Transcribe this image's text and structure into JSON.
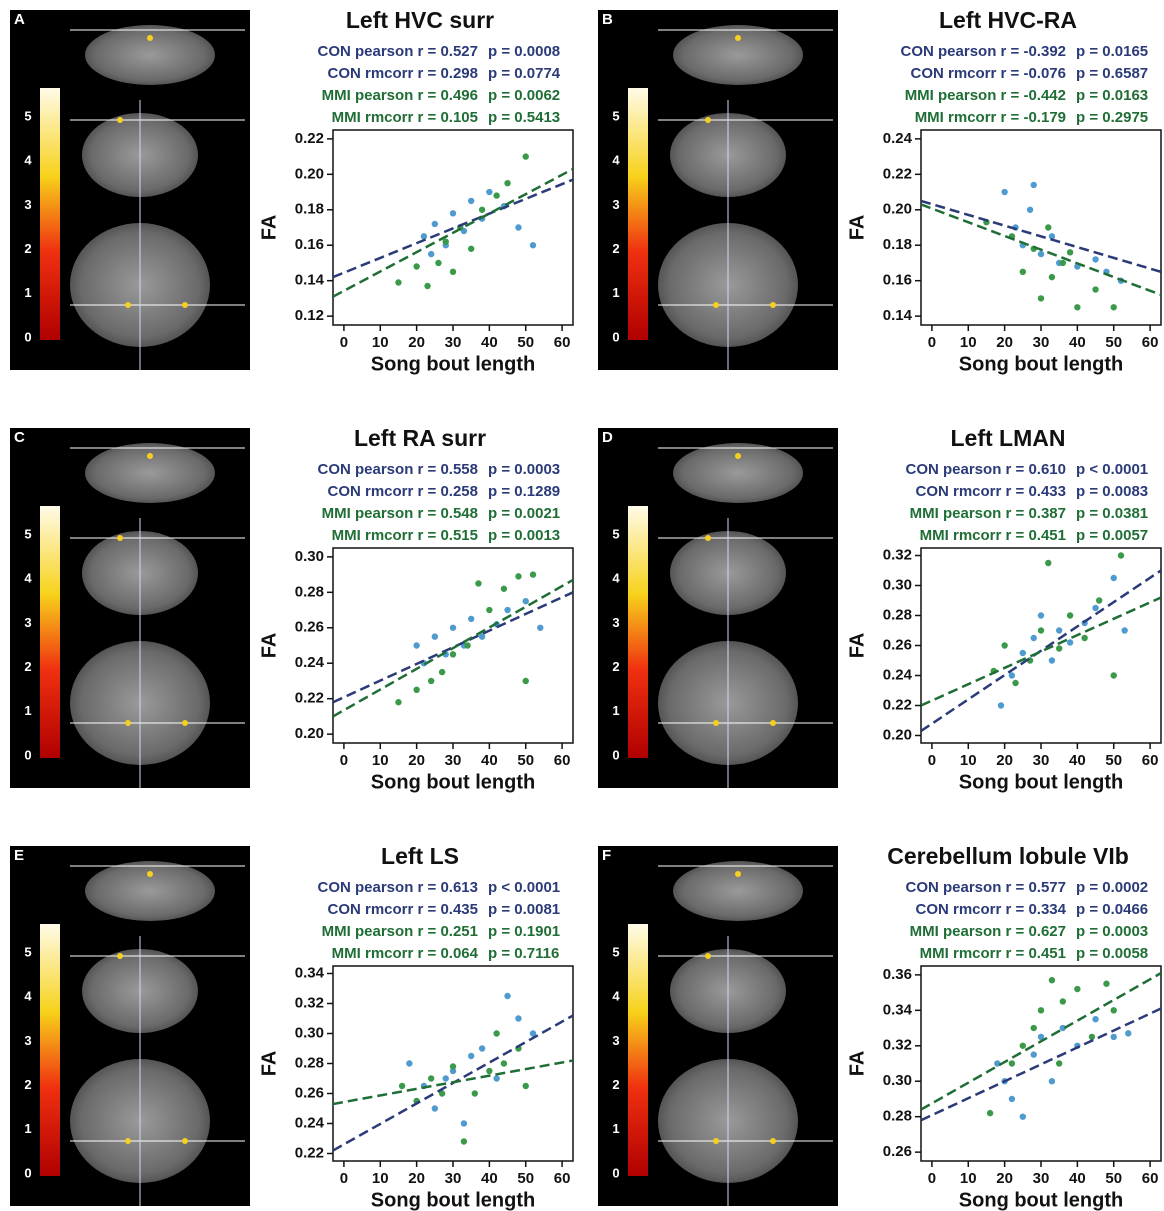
{
  "chart_data": [
    {
      "type": "scatter",
      "panel": "A",
      "title": "Left HVC surr",
      "stats": [
        {
          "label": "CON pearson r = 0.527",
          "p": "p = 0.0008",
          "color": "#2b3a78"
        },
        {
          "label": "CON rmcorr r = 0.298",
          "p": "p = 0.0774",
          "color": "#2b3a78"
        },
        {
          "label": "MMI pearson r = 0.496",
          "p": "p = 0.0062",
          "color": "#1f6e35"
        },
        {
          "label": "MMI rmcorr r = 0.105",
          "p": "p = 0.5413",
          "color": "#1f6e35"
        }
      ],
      "xlabel": "Song bout length",
      "ylabel": "FA",
      "xlim": [
        -3,
        63
      ],
      "xticks": [
        0,
        10,
        20,
        30,
        40,
        50,
        60
      ],
      "ylim": [
        0.115,
        0.225
      ],
      "yticks": [
        0.12,
        0.14,
        0.16,
        0.18,
        {
          "value": 0.2,
          "label": "0.20"
        },
        0.22
      ],
      "colorbar_ticks": [
        0,
        1,
        2,
        3,
        4,
        5
      ],
      "series": [
        {
          "color": "#4f9bd0",
          "x": [
            22,
            25,
            28,
            30,
            33,
            35,
            38,
            40,
            44,
            48,
            52,
            24
          ],
          "values": [
            0.165,
            0.172,
            0.16,
            0.178,
            0.168,
            0.185,
            0.175,
            0.19,
            0.182,
            0.17,
            0.16,
            0.155
          ]
        },
        {
          "color": "#3a9a4a",
          "x": [
            15,
            20,
            23,
            26,
            28,
            32,
            35,
            38,
            42,
            45,
            50,
            30
          ],
          "values": [
            0.139,
            0.148,
            0.137,
            0.15,
            0.162,
            0.17,
            0.158,
            0.18,
            0.188,
            0.195,
            0.21,
            0.145
          ]
        }
      ],
      "fits": [
        {
          "color": "#2b3a78",
          "x": [
            -3,
            63
          ],
          "values": [
            0.142,
            0.197
          ]
        },
        {
          "color": "#1f6e35",
          "x": [
            -3,
            63
          ],
          "values": [
            0.131,
            0.203
          ]
        }
      ]
    },
    {
      "type": "scatter",
      "panel": "B",
      "title": "Left HVC-RA",
      "stats": [
        {
          "label": "CON pearson r = -0.392",
          "p": "p = 0.0165",
          "color": "#2b3a78"
        },
        {
          "label": "CON rmcorr r = -0.076",
          "p": "p = 0.6587",
          "color": "#2b3a78"
        },
        {
          "label": "MMI pearson r = -0.442",
          "p": "p = 0.0163",
          "color": "#1f6e35"
        },
        {
          "label": "MMI rmcorr r = -0.179",
          "p": "p = 0.2975",
          "color": "#1f6e35"
        }
      ],
      "xlabel": "Song bout length",
      "ylabel": "FA",
      "xlim": [
        -3,
        63
      ],
      "xticks": [
        0,
        10,
        20,
        30,
        40,
        50,
        60
      ],
      "ylim": [
        0.135,
        0.245
      ],
      "yticks": [
        0.14,
        0.16,
        0.18,
        {
          "value": 0.2,
          "label": "0.20"
        },
        0.22,
        0.24
      ],
      "colorbar_ticks": [
        0,
        1,
        2,
        3,
        4,
        5
      ],
      "series": [
        {
          "color": "#4f9bd0",
          "x": [
            20,
            23,
            25,
            27,
            30,
            33,
            35,
            40,
            45,
            48,
            52,
            28
          ],
          "values": [
            0.21,
            0.19,
            0.18,
            0.2,
            0.175,
            0.185,
            0.17,
            0.168,
            0.172,
            0.165,
            0.16,
            0.214
          ]
        },
        {
          "color": "#3a9a4a",
          "x": [
            15,
            22,
            25,
            28,
            30,
            33,
            36,
            40,
            45,
            50,
            32,
            38
          ],
          "values": [
            0.193,
            0.185,
            0.165,
            0.178,
            0.15,
            0.162,
            0.17,
            0.145,
            0.155,
            0.145,
            0.19,
            0.176
          ]
        }
      ],
      "fits": [
        {
          "color": "#2b3a78",
          "x": [
            -3,
            63
          ],
          "values": [
            0.205,
            0.165
          ]
        },
        {
          "color": "#1f6e35",
          "x": [
            -3,
            63
          ],
          "values": [
            0.203,
            0.152
          ]
        }
      ]
    },
    {
      "type": "scatter",
      "panel": "C",
      "title": "Left RA surr",
      "stats": [
        {
          "label": "CON pearson r = 0.558",
          "p": "p = 0.0003",
          "color": "#2b3a78"
        },
        {
          "label": "CON rmcorr r = 0.258",
          "p": "p = 0.1289",
          "color": "#2b3a78"
        },
        {
          "label": "MMI pearson r = 0.548",
          "p": "p = 0.0021",
          "color": "#1f6e35"
        },
        {
          "label": "MMI rmcorr r = 0.515",
          "p": "p = 0.0013",
          "color": "#1f6e35"
        }
      ],
      "xlabel": "Song bout length",
      "ylabel": "FA",
      "xlim": [
        -3,
        63
      ],
      "xticks": [
        0,
        10,
        20,
        30,
        40,
        50,
        60
      ],
      "ylim": [
        0.195,
        0.305
      ],
      "yticks": [
        {
          "value": 0.2,
          "label": "0.20"
        },
        0.22,
        0.24,
        0.26,
        0.28,
        {
          "value": 0.3,
          "label": "0.30"
        }
      ],
      "colorbar_ticks": [
        0,
        1,
        2,
        3,
        4,
        5
      ],
      "series": [
        {
          "color": "#4f9bd0",
          "x": [
            20,
            22,
            25,
            28,
            30,
            33,
            35,
            38,
            42,
            45,
            50,
            54
          ],
          "values": [
            0.25,
            0.24,
            0.255,
            0.245,
            0.26,
            0.25,
            0.265,
            0.255,
            0.262,
            0.27,
            0.275,
            0.26
          ]
        },
        {
          "color": "#3a9a4a",
          "x": [
            15,
            20,
            24,
            27,
            30,
            34,
            37,
            40,
            44,
            48,
            52,
            50
          ],
          "values": [
            0.218,
            0.225,
            0.23,
            0.235,
            0.245,
            0.25,
            0.285,
            0.27,
            0.282,
            0.289,
            0.29,
            0.23
          ]
        }
      ],
      "fits": [
        {
          "color": "#2b3a78",
          "x": [
            -3,
            63
          ],
          "values": [
            0.218,
            0.28
          ]
        },
        {
          "color": "#1f6e35",
          "x": [
            -3,
            63
          ],
          "values": [
            0.21,
            0.287
          ]
        }
      ]
    },
    {
      "type": "scatter",
      "panel": "D",
      "title": "Left LMAN",
      "stats": [
        {
          "label": "CON pearson r = 0.610",
          "p": "p < 0.0001",
          "color": "#2b3a78"
        },
        {
          "label": "CON rmcorr r = 0.433",
          "p": "p = 0.0083",
          "color": "#2b3a78"
        },
        {
          "label": "MMI pearson r = 0.387",
          "p": "p = 0.0381",
          "color": "#1f6e35"
        },
        {
          "label": "MMI rmcorr r = 0.451",
          "p": "p = 0.0057",
          "color": "#1f6e35"
        }
      ],
      "xlabel": "Song bout length",
      "ylabel": "FA",
      "xlim": [
        -3,
        63
      ],
      "xticks": [
        0,
        10,
        20,
        30,
        40,
        50,
        60
      ],
      "ylim": [
        0.195,
        0.325
      ],
      "yticks": [
        {
          "value": 0.2,
          "label": "0.20"
        },
        0.22,
        0.24,
        0.26,
        0.28,
        {
          "value": 0.3,
          "label": "0.30"
        },
        0.32
      ],
      "colorbar_ticks": [
        0,
        1,
        2,
        3,
        4,
        5
      ],
      "series": [
        {
          "color": "#4f9bd0",
          "x": [
            19,
            22,
            25,
            28,
            30,
            33,
            35,
            38,
            42,
            45,
            50,
            53
          ],
          "values": [
            0.22,
            0.24,
            0.255,
            0.265,
            0.28,
            0.25,
            0.27,
            0.262,
            0.275,
            0.285,
            0.305,
            0.27
          ]
        },
        {
          "color": "#3a9a4a",
          "x": [
            17,
            20,
            23,
            27,
            30,
            32,
            35,
            38,
            42,
            46,
            50,
            52
          ],
          "values": [
            0.243,
            0.26,
            0.235,
            0.25,
            0.27,
            0.315,
            0.258,
            0.28,
            0.265,
            0.29,
            0.24,
            0.32
          ]
        }
      ],
      "fits": [
        {
          "color": "#2b3a78",
          "x": [
            -3,
            63
          ],
          "values": [
            0.203,
            0.31
          ]
        },
        {
          "color": "#1f6e35",
          "x": [
            -3,
            63
          ],
          "values": [
            0.22,
            0.292
          ]
        }
      ]
    },
    {
      "type": "scatter",
      "panel": "E",
      "title": "Left LS",
      "stats": [
        {
          "label": "CON pearson r = 0.613",
          "p": "p < 0.0001",
          "color": "#2b3a78"
        },
        {
          "label": "CON rmcorr r = 0.435",
          "p": "p = 0.0081",
          "color": "#2b3a78"
        },
        {
          "label": "MMI pearson r = 0.251",
          "p": "p = 0.1901",
          "color": "#1f6e35"
        },
        {
          "label": "MMI rmcorr r = 0.064",
          "p": "p = 0.7116",
          "color": "#1f6e35"
        }
      ],
      "xlabel": "Song bout length",
      "ylabel": "FA",
      "xlim": [
        -3,
        63
      ],
      "xticks": [
        0,
        10,
        20,
        30,
        40,
        50,
        60
      ],
      "ylim": [
        0.215,
        0.345
      ],
      "yticks": [
        0.22,
        0.24,
        0.26,
        0.28,
        {
          "value": 0.3,
          "label": "0.30"
        },
        0.32,
        0.34
      ],
      "colorbar_ticks": [
        0,
        1,
        2,
        3,
        4,
        5
      ],
      "series": [
        {
          "color": "#4f9bd0",
          "x": [
            18,
            22,
            25,
            28,
            30,
            33,
            35,
            38,
            42,
            45,
            48,
            52
          ],
          "values": [
            0.28,
            0.265,
            0.25,
            0.27,
            0.275,
            0.24,
            0.285,
            0.29,
            0.27,
            0.325,
            0.31,
            0.3
          ]
        },
        {
          "color": "#3a9a4a",
          "x": [
            16,
            20,
            24,
            27,
            30,
            33,
            36,
            40,
            44,
            48,
            50,
            42
          ],
          "values": [
            0.265,
            0.255,
            0.27,
            0.26,
            0.278,
            0.228,
            0.26,
            0.275,
            0.28,
            0.29,
            0.265,
            0.3
          ]
        }
      ],
      "fits": [
        {
          "color": "#2b3a78",
          "x": [
            -3,
            63
          ],
          "values": [
            0.222,
            0.312
          ]
        },
        {
          "color": "#1f6e35",
          "x": [
            -3,
            63
          ],
          "values": [
            0.253,
            0.282
          ]
        }
      ]
    },
    {
      "type": "scatter",
      "panel": "F",
      "title": "Cerebellum lobule VIb",
      "stats": [
        {
          "label": "CON pearson r = 0.577",
          "p": "p = 0.0002",
          "color": "#2b3a78"
        },
        {
          "label": "CON rmcorr r = 0.334",
          "p": "p = 0.0466",
          "color": "#2b3a78"
        },
        {
          "label": "MMI pearson r = 0.627",
          "p": "p = 0.0003",
          "color": "#1f6e35"
        },
        {
          "label": "MMI rmcorr r = 0.451",
          "p": "p = 0.0058",
          "color": "#1f6e35"
        }
      ],
      "xlabel": "Song bout length",
      "ylabel": "FA",
      "xlim": [
        -3,
        63
      ],
      "xticks": [
        0,
        10,
        20,
        30,
        40,
        50,
        60
      ],
      "ylim": [
        0.255,
        0.365
      ],
      "yticks": [
        0.26,
        0.28,
        {
          "value": 0.3,
          "label": "0.30"
        },
        0.32,
        0.34,
        0.36
      ],
      "colorbar_ticks": [
        0,
        1,
        2,
        3,
        4,
        5
      ],
      "series": [
        {
          "color": "#4f9bd0",
          "x": [
            18,
            20,
            22,
            25,
            28,
            30,
            33,
            36,
            40,
            45,
            50,
            54
          ],
          "values": [
            0.31,
            0.3,
            0.29,
            0.28,
            0.315,
            0.325,
            0.3,
            0.33,
            0.32,
            0.335,
            0.325,
            0.327
          ]
        },
        {
          "color": "#3a9a4a",
          "x": [
            16,
            22,
            25,
            28,
            30,
            33,
            36,
            40,
            44,
            48,
            50,
            35
          ],
          "values": [
            0.282,
            0.31,
            0.32,
            0.33,
            0.34,
            0.357,
            0.345,
            0.352,
            0.325,
            0.355,
            0.34,
            0.31
          ]
        }
      ],
      "fits": [
        {
          "color": "#2b3a78",
          "x": [
            -3,
            63
          ],
          "values": [
            0.278,
            0.341
          ]
        },
        {
          "color": "#1f6e35",
          "x": [
            -3,
            63
          ],
          "values": [
            0.284,
            0.361
          ]
        }
      ]
    }
  ]
}
